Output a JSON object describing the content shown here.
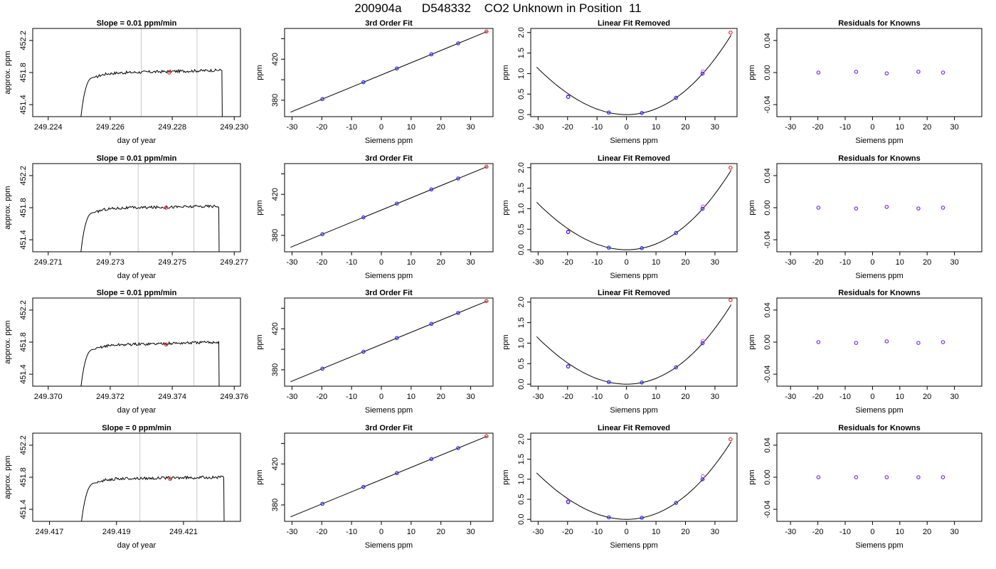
{
  "page": {
    "title": "200904a      D548332    CO2 Unknown in Position  11"
  },
  "chart_data": [
    {
      "id": "row1-time",
      "type": "line",
      "title": "Slope =  0.01  ppm/min",
      "xlabel": "day of year",
      "ylabel": "approx. ppm",
      "xlim": [
        249.2235,
        249.2302
      ],
      "ylim": [
        451.25,
        452.35
      ],
      "xticks": [
        "249.224",
        "249.226",
        "249.228",
        "249.230"
      ],
      "xtick_values": [
        249.224,
        249.226,
        249.228,
        249.23
      ],
      "yticks": [
        "451.4",
        "451.8",
        "452.2"
      ],
      "ytick_values": [
        451.4,
        451.8,
        452.2
      ],
      "vlines": [
        249.227,
        249.2288
      ],
      "trace": {
        "start": 249.225,
        "rise_end": 249.2255,
        "end": 249.2296,
        "level": 451.79,
        "drift": 0.04
      },
      "marker": {
        "x": 249.2279,
        "y": 451.8,
        "color": "#e8262b"
      }
    },
    {
      "id": "row1-fit",
      "type": "scatter",
      "title": "3rd Order Fit",
      "xlabel": "Siemens ppm",
      "ylabel": "ppm",
      "xlim": [
        -32.5,
        37.5
      ],
      "ylim": [
        364,
        450
      ],
      "xticks": [
        "-30",
        "-20",
        "-10",
        "0",
        "10",
        "20",
        "30"
      ],
      "xtick_values": [
        -30,
        -20,
        -10,
        0,
        10,
        20,
        30
      ],
      "yticks": [
        "380",
        "420"
      ],
      "ytick_values": [
        380,
        420
      ],
      "ytick_minor": [
        400,
        440
      ],
      "fit_line": {
        "x0": -30.5,
        "y0": 368.4,
        "x1": 35.5,
        "y1": 447.0
      },
      "points": [
        {
          "x": -19.8,
          "y": 381.1
        },
        {
          "x": -6.0,
          "y": 397.6
        },
        {
          "x": 5.2,
          "y": 411.0
        },
        {
          "x": 16.8,
          "y": 424.8
        },
        {
          "x": 25.8,
          "y": 435.5
        }
      ],
      "point_color": "#2a2aff",
      "unknown": {
        "x": 35.3,
        "y": 447.0,
        "color": "#e8262b"
      }
    },
    {
      "id": "row1-linear",
      "type": "scatter",
      "title": "Linear Fit Removed",
      "xlabel": "Siemens ppm",
      "ylabel": "ppm",
      "xlim": [
        -32.5,
        37.5
      ],
      "ylim": [
        -0.05,
        2.1
      ],
      "xticks": [
        "-30",
        "-20",
        "-10",
        "0",
        "10",
        "20",
        "30"
      ],
      "xtick_values": [
        -30,
        -20,
        -10,
        0,
        10,
        20,
        30
      ],
      "yticks": [
        "0.0",
        "0.5",
        "1.0",
        "1.5",
        "2.0"
      ],
      "ytick_values": [
        0.0,
        0.5,
        1.0,
        1.5,
        2.0
      ],
      "curve": {
        "x0": -30.5,
        "x1": 35.5,
        "a": 0.00138,
        "b": -8e-05,
        "c": 4.5e-06
      },
      "points": [
        {
          "x": -19.8,
          "y": 0.43
        },
        {
          "x": -6.0,
          "y": 0.05
        },
        {
          "x": 5.2,
          "y": 0.04
        },
        {
          "x": 16.8,
          "y": 0.41
        },
        {
          "x": 25.8,
          "y": 1.0
        }
      ],
      "point_color": "#2a2aff",
      "secondary_points": [
        {
          "x": -19.8,
          "y": 0.44
        },
        {
          "x": 25.9,
          "y": 1.05
        }
      ],
      "secondary_color": "#e040e0",
      "unknown": {
        "x": 35.3,
        "y": 2.0,
        "color": "#e8262b"
      }
    },
    {
      "id": "row1-resid",
      "type": "scatter",
      "title": "Residuals for Knowns",
      "xlabel": "Siemens ppm",
      "ylabel": "ppm",
      "xlim": [
        -35,
        40
      ],
      "ylim": [
        -0.055,
        0.055
      ],
      "xticks": [
        "-30",
        "-20",
        "-10",
        "0",
        "10",
        "20",
        "30"
      ],
      "xtick_values": [
        -30,
        -20,
        -10,
        0,
        10,
        20,
        30
      ],
      "yticks": [
        "-0.04",
        "0.00",
        "0.04"
      ],
      "ytick_values": [
        -0.04,
        0.0,
        0.04
      ],
      "points": [
        {
          "x": -19.8,
          "y": 0.0
        },
        {
          "x": -6.0,
          "y": 0.001
        },
        {
          "x": 5.2,
          "y": -0.001
        },
        {
          "x": 16.8,
          "y": 0.001
        },
        {
          "x": 25.8,
          "y": 0.0
        }
      ],
      "point_color": "#7a2be0"
    },
    {
      "id": "row2-time",
      "type": "line",
      "title": "Slope =  0.01  ppm/min",
      "xlabel": "day of year",
      "ylabel": "approx. ppm",
      "xlim": [
        249.2705,
        249.2772
      ],
      "ylim": [
        451.25,
        452.35
      ],
      "xticks": [
        "249.271",
        "249.273",
        "249.275",
        "249.277"
      ],
      "xtick_values": [
        249.271,
        249.273,
        249.275,
        249.277
      ],
      "yticks": [
        "451.4",
        "451.8",
        "452.2"
      ],
      "ytick_values": [
        451.4,
        451.8,
        452.2
      ],
      "vlines": [
        249.2739,
        249.2757
      ],
      "trace": {
        "start": 249.272,
        "rise_end": 249.2725,
        "end": 249.2765,
        "level": 451.79,
        "drift": 0.03
      },
      "marker": {
        "x": 249.2748,
        "y": 451.8,
        "color": "#e8262b"
      }
    },
    {
      "id": "row2-fit",
      "type": "scatter",
      "title": "3rd Order Fit",
      "xlabel": "Siemens ppm",
      "ylabel": "ppm",
      "xlim": [
        -32.5,
        37.5
      ],
      "ylim": [
        364,
        450
      ],
      "xticks": [
        "-30",
        "-20",
        "-10",
        "0",
        "10",
        "20",
        "30"
      ],
      "xtick_values": [
        -30,
        -20,
        -10,
        0,
        10,
        20,
        30
      ],
      "yticks": [
        "380",
        "420"
      ],
      "ytick_values": [
        380,
        420
      ],
      "ytick_minor": [
        400,
        440
      ],
      "fit_line": {
        "x0": -30.5,
        "y0": 368.4,
        "x1": 35.5,
        "y1": 447.0
      },
      "points": [
        {
          "x": -19.8,
          "y": 381.1
        },
        {
          "x": -6.0,
          "y": 397.6
        },
        {
          "x": 5.2,
          "y": 411.0
        },
        {
          "x": 16.8,
          "y": 424.8
        },
        {
          "x": 25.8,
          "y": 435.5
        }
      ],
      "point_color": "#2a2aff",
      "unknown": {
        "x": 35.3,
        "y": 447.0,
        "color": "#e8262b"
      }
    },
    {
      "id": "row2-linear",
      "type": "scatter",
      "title": "Linear Fit Removed",
      "xlabel": "Siemens ppm",
      "ylabel": "ppm",
      "xlim": [
        -32.5,
        37.5
      ],
      "ylim": [
        -0.05,
        2.1
      ],
      "xticks": [
        "-30",
        "-20",
        "-10",
        "0",
        "10",
        "20",
        "30"
      ],
      "xtick_values": [
        -30,
        -20,
        -10,
        0,
        10,
        20,
        30
      ],
      "yticks": [
        "0.0",
        "0.5",
        "1.0",
        "1.5",
        "2.0"
      ],
      "ytick_values": [
        0.0,
        0.5,
        1.0,
        1.5,
        2.0
      ],
      "curve": {
        "x0": -30.5,
        "x1": 35.5,
        "a": 0.00138,
        "b": -8e-05,
        "c": 4.5e-06
      },
      "points": [
        {
          "x": -19.8,
          "y": 0.43
        },
        {
          "x": -6.0,
          "y": 0.05
        },
        {
          "x": 5.2,
          "y": 0.04
        },
        {
          "x": 16.8,
          "y": 0.41
        },
        {
          "x": 25.8,
          "y": 1.0
        }
      ],
      "point_color": "#2a2aff",
      "secondary_points": [
        {
          "x": -19.8,
          "y": 0.44
        },
        {
          "x": 25.9,
          "y": 1.05
        }
      ],
      "secondary_color": "#e040e0",
      "unknown": {
        "x": 35.3,
        "y": 2.0,
        "color": "#e8262b"
      }
    },
    {
      "id": "row2-resid",
      "type": "scatter",
      "title": "Residuals for Knowns",
      "xlabel": "Siemens ppm",
      "ylabel": "ppm",
      "xlim": [
        -35,
        40
      ],
      "ylim": [
        -0.055,
        0.055
      ],
      "xticks": [
        "-30",
        "-20",
        "-10",
        "0",
        "10",
        "20",
        "30"
      ],
      "xtick_values": [
        -30,
        -20,
        -10,
        0,
        10,
        20,
        30
      ],
      "yticks": [
        "-0.04",
        "0.00",
        "0.04"
      ],
      "ytick_values": [
        -0.04,
        0.0,
        0.04
      ],
      "points": [
        {
          "x": -19.8,
          "y": 0.0
        },
        {
          "x": -6.0,
          "y": -0.001
        },
        {
          "x": 5.2,
          "y": 0.001
        },
        {
          "x": 16.8,
          "y": -0.001
        },
        {
          "x": 25.8,
          "y": 0.0
        }
      ],
      "point_color": "#7a2be0"
    },
    {
      "id": "row3-time",
      "type": "line",
      "title": "Slope =  0.01  ppm/min",
      "xlabel": "day of year",
      "ylabel": "approx. ppm",
      "xlim": [
        249.3695,
        249.3762
      ],
      "ylim": [
        451.25,
        452.35
      ],
      "xticks": [
        "249.370",
        "249.372",
        "249.374",
        "249.376"
      ],
      "xtick_values": [
        249.37,
        249.372,
        249.374,
        249.376
      ],
      "yticks": [
        "451.4",
        "451.8",
        "452.2"
      ],
      "ytick_values": [
        451.4,
        451.8,
        452.2
      ],
      "vlines": [
        249.3729,
        249.3747
      ],
      "trace": {
        "start": 249.371,
        "rise_end": 249.3715,
        "end": 249.3755,
        "level": 451.76,
        "drift": 0.04
      },
      "marker": {
        "x": 249.3738,
        "y": 451.77,
        "color": "#e8262b"
      }
    },
    {
      "id": "row3-fit",
      "type": "scatter",
      "title": "3rd Order Fit",
      "xlabel": "Siemens ppm",
      "ylabel": "ppm",
      "xlim": [
        -32.5,
        37.5
      ],
      "ylim": [
        364,
        450
      ],
      "xticks": [
        "-30",
        "-20",
        "-10",
        "0",
        "10",
        "20",
        "30"
      ],
      "xtick_values": [
        -30,
        -20,
        -10,
        0,
        10,
        20,
        30
      ],
      "yticks": [
        "380",
        "420"
      ],
      "ytick_values": [
        380,
        420
      ],
      "ytick_minor": [
        400,
        440
      ],
      "fit_line": {
        "x0": -30.5,
        "y0": 368.4,
        "x1": 35.5,
        "y1": 447.0
      },
      "points": [
        {
          "x": -19.8,
          "y": 381.1
        },
        {
          "x": -6.0,
          "y": 397.6
        },
        {
          "x": 5.2,
          "y": 411.0
        },
        {
          "x": 16.8,
          "y": 424.8
        },
        {
          "x": 25.8,
          "y": 435.5
        }
      ],
      "point_color": "#2a2aff",
      "unknown": {
        "x": 35.3,
        "y": 447.0,
        "color": "#e8262b"
      }
    },
    {
      "id": "row3-linear",
      "type": "scatter",
      "title": "Linear Fit Removed",
      "xlabel": "Siemens ppm",
      "ylabel": "ppm",
      "xlim": [
        -32.5,
        37.5
      ],
      "ylim": [
        -0.05,
        2.1
      ],
      "xticks": [
        "-30",
        "-20",
        "-10",
        "0",
        "10",
        "20",
        "30"
      ],
      "xtick_values": [
        -30,
        -20,
        -10,
        0,
        10,
        20,
        30
      ],
      "yticks": [
        "0.0",
        "0.5",
        "1.0",
        "1.5",
        "2.0"
      ],
      "ytick_values": [
        0.0,
        0.5,
        1.0,
        1.5,
        2.0
      ],
      "curve": {
        "x0": -30.5,
        "x1": 35.5,
        "a": 0.00138,
        "b": -8e-05,
        "c": 4.5e-06
      },
      "points": [
        {
          "x": -19.8,
          "y": 0.43
        },
        {
          "x": -6.0,
          "y": 0.05
        },
        {
          "x": 5.2,
          "y": 0.04
        },
        {
          "x": 16.8,
          "y": 0.41
        },
        {
          "x": 25.8,
          "y": 1.0
        }
      ],
      "point_color": "#2a2aff",
      "secondary_points": [
        {
          "x": -19.8,
          "y": 0.44
        },
        {
          "x": 25.9,
          "y": 1.05
        }
      ],
      "secondary_color": "#e040e0",
      "unknown": {
        "x": 35.3,
        "y": 2.05,
        "color": "#e8262b"
      }
    },
    {
      "id": "row3-resid",
      "type": "scatter",
      "title": "Residuals for Knowns",
      "xlabel": "Siemens ppm",
      "ylabel": "ppm",
      "xlim": [
        -35,
        40
      ],
      "ylim": [
        -0.055,
        0.055
      ],
      "xticks": [
        "-30",
        "-20",
        "-10",
        "0",
        "10",
        "20",
        "30"
      ],
      "xtick_values": [
        -30,
        -20,
        -10,
        0,
        10,
        20,
        30
      ],
      "yticks": [
        "-0.04",
        "0.00",
        "0.04"
      ],
      "ytick_values": [
        -0.04,
        0.0,
        0.04
      ],
      "points": [
        {
          "x": -19.8,
          "y": 0.0
        },
        {
          "x": -6.0,
          "y": -0.001
        },
        {
          "x": 5.2,
          "y": 0.001
        },
        {
          "x": 16.8,
          "y": -0.001
        },
        {
          "x": 25.8,
          "y": 0.0
        }
      ],
      "point_color": "#7a2be0"
    },
    {
      "id": "row4-time",
      "type": "line",
      "title": "Slope =  0  ppm/min",
      "xlabel": "day of year",
      "ylabel": "approx. ppm",
      "xlim": [
        249.4165,
        249.4227
      ],
      "ylim": [
        451.25,
        452.35
      ],
      "xticks": [
        "249.417",
        "249.419",
        "249.421"
      ],
      "xtick_values": [
        249.417,
        249.419,
        249.421
      ],
      "yticks": [
        "451.4",
        "451.8",
        "452.2"
      ],
      "ytick_values": [
        451.4,
        451.8,
        452.2
      ],
      "vlines": [
        249.4197,
        249.4214
      ],
      "trace": {
        "start": 249.4179,
        "rise_end": 249.4184,
        "end": 249.4222,
        "level": 451.78,
        "drift": 0.02
      },
      "marker": {
        "x": 249.4206,
        "y": 451.78,
        "color": "#e8262b"
      }
    },
    {
      "id": "row4-fit",
      "type": "scatter",
      "title": "3rd Order Fit",
      "xlabel": "Siemens ppm",
      "ylabel": "ppm",
      "xlim": [
        -32.5,
        37.5
      ],
      "ylim": [
        364,
        450
      ],
      "xticks": [
        "-30",
        "-20",
        "-10",
        "0",
        "10",
        "20",
        "30"
      ],
      "xtick_values": [
        -30,
        -20,
        -10,
        0,
        10,
        20,
        30
      ],
      "yticks": [
        "380",
        "420"
      ],
      "ytick_values": [
        380,
        420
      ],
      "ytick_minor": [
        400,
        440
      ],
      "fit_line": {
        "x0": -30.5,
        "y0": 368.4,
        "x1": 35.5,
        "y1": 447.0
      },
      "points": [
        {
          "x": -19.8,
          "y": 381.1
        },
        {
          "x": -6.0,
          "y": 397.6
        },
        {
          "x": 5.2,
          "y": 411.0
        },
        {
          "x": 16.8,
          "y": 424.8
        },
        {
          "x": 25.8,
          "y": 435.5
        }
      ],
      "point_color": "#2a2aff",
      "unknown": {
        "x": 35.3,
        "y": 447.0,
        "color": "#e8262b"
      }
    },
    {
      "id": "row4-linear",
      "type": "scatter",
      "title": "Linear Fit Removed",
      "xlabel": "Siemens ppm",
      "ylabel": "ppm",
      "xlim": [
        -32.5,
        37.5
      ],
      "ylim": [
        -0.05,
        2.15
      ],
      "xticks": [
        "-30",
        "-20",
        "-10",
        "0",
        "10",
        "20",
        "30"
      ],
      "xtick_values": [
        -30,
        -20,
        -10,
        0,
        10,
        20,
        30
      ],
      "yticks": [
        "0.0",
        "0.5",
        "1.0",
        "1.5",
        "2.0"
      ],
      "ytick_values": [
        0.0,
        0.5,
        1.0,
        1.5,
        2.0
      ],
      "curve": {
        "x0": -30.5,
        "x1": 35.5,
        "a": 0.00138,
        "b": -8e-05,
        "c": 4.5e-06
      },
      "points": [
        {
          "x": -19.8,
          "y": 0.43
        },
        {
          "x": -6.0,
          "y": 0.05
        },
        {
          "x": 5.2,
          "y": 0.04
        },
        {
          "x": 16.8,
          "y": 0.41
        },
        {
          "x": 25.8,
          "y": 1.0
        }
      ],
      "point_color": "#2a2aff",
      "secondary_points": [
        {
          "x": -19.8,
          "y": 0.45
        },
        {
          "x": 25.9,
          "y": 1.07
        }
      ],
      "secondary_color": "#e040e0",
      "unknown": {
        "x": 35.3,
        "y": 2.0,
        "color": "#e8262b"
      }
    },
    {
      "id": "row4-resid",
      "type": "scatter",
      "title": "Residuals for Knowns",
      "xlabel": "Siemens ppm",
      "ylabel": "ppm",
      "xlim": [
        -35,
        40
      ],
      "ylim": [
        -0.055,
        0.055
      ],
      "xticks": [
        "-30",
        "-20",
        "-10",
        "0",
        "10",
        "20",
        "30"
      ],
      "xtick_values": [
        -30,
        -20,
        -10,
        0,
        10,
        20,
        30
      ],
      "yticks": [
        "-0.04",
        "0.00",
        "0.04"
      ],
      "ytick_values": [
        -0.04,
        0.0,
        0.04
      ],
      "points": [
        {
          "x": -19.8,
          "y": 0.0
        },
        {
          "x": -6.0,
          "y": 0.0
        },
        {
          "x": 5.2,
          "y": 0.0
        },
        {
          "x": 16.8,
          "y": 0.0
        },
        {
          "x": 25.8,
          "y": 0.0
        }
      ],
      "point_color": "#7a2be0"
    }
  ]
}
